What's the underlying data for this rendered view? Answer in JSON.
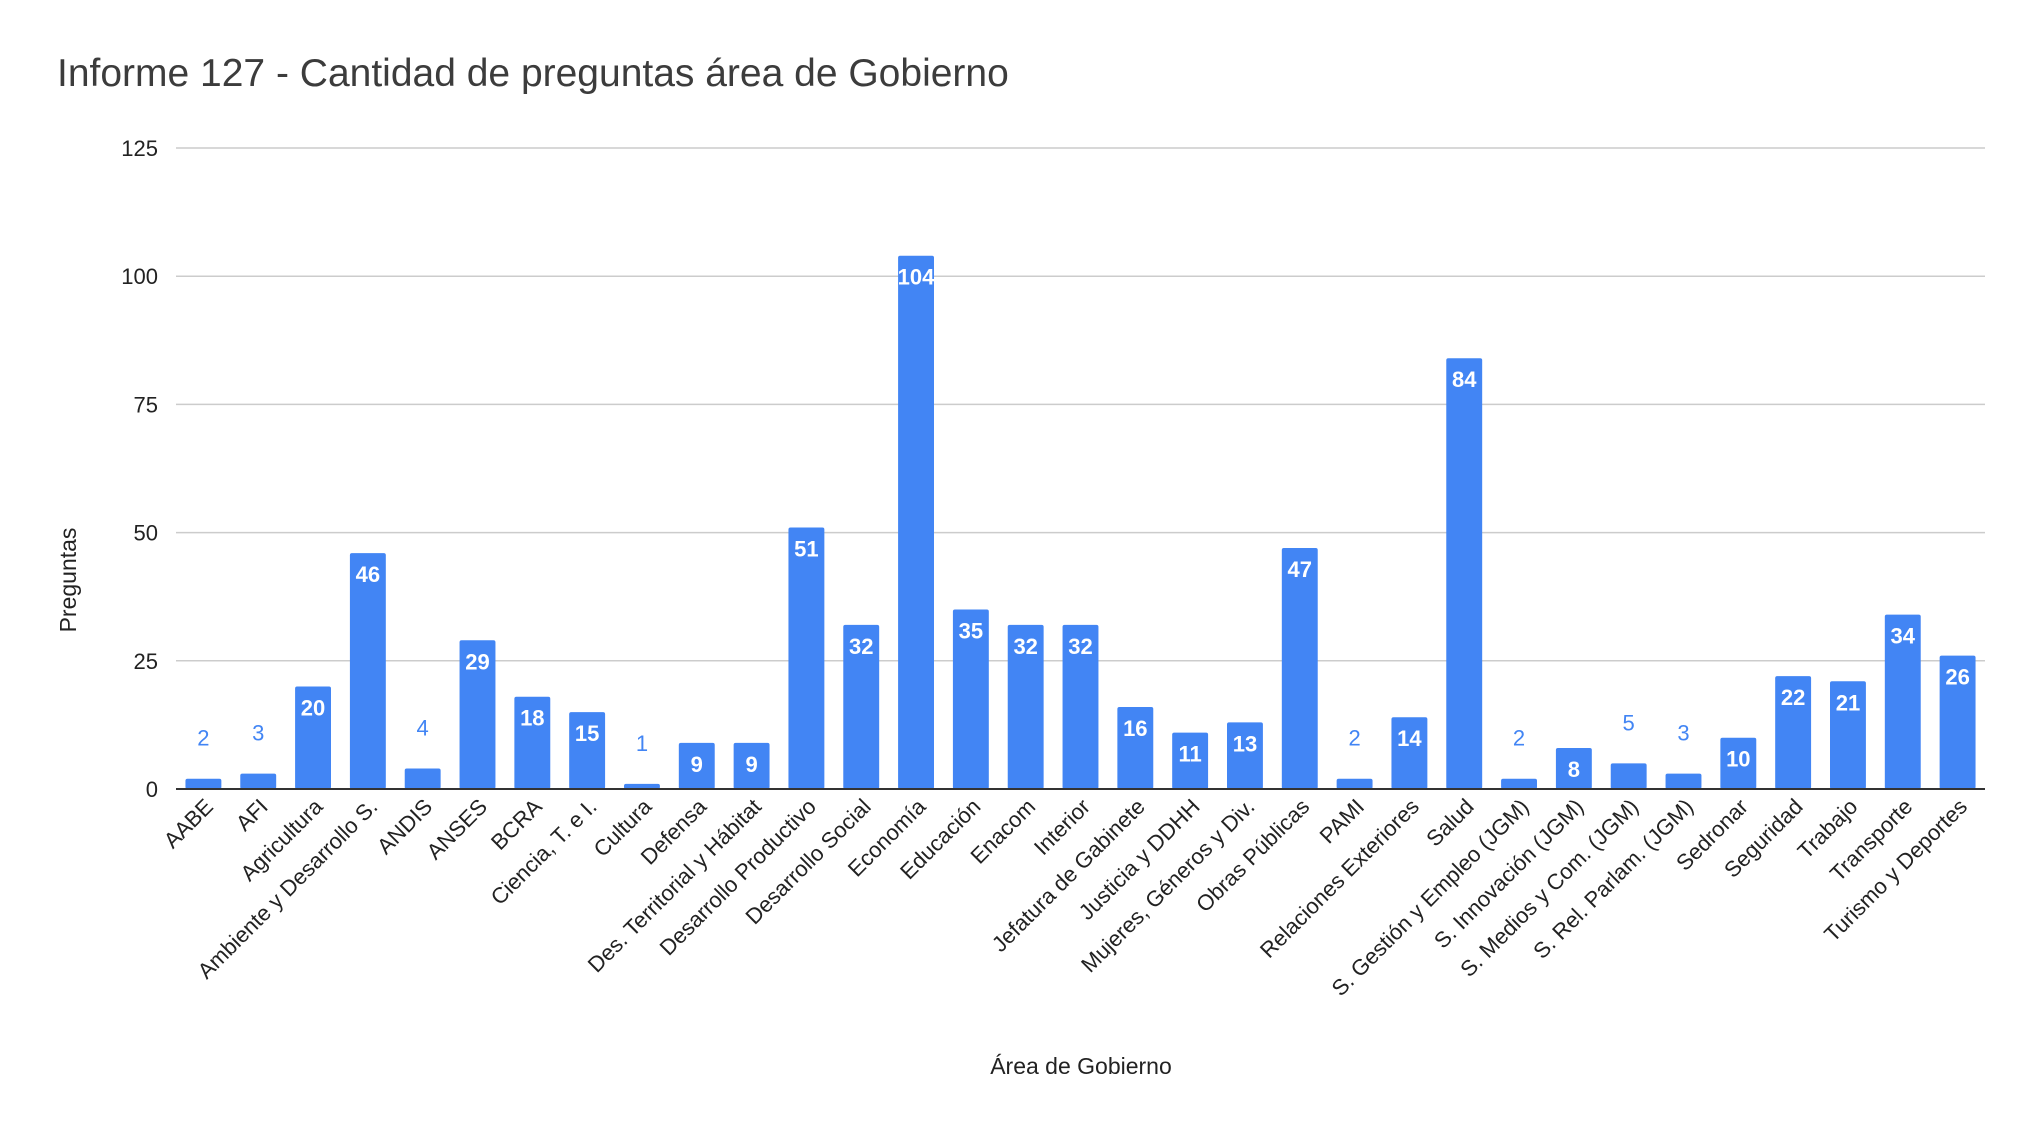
{
  "chart_data": {
    "type": "bar",
    "title": "Informe 127 - Cantidad de preguntas área de Gobierno",
    "xlabel": "Área de Gobierno",
    "ylabel": "Preguntas",
    "ylim": [
      0,
      125
    ],
    "yticks": [
      0,
      25,
      50,
      75,
      100,
      125
    ],
    "grid": true,
    "legend": "none",
    "bar_color": "#4285f4",
    "categories": [
      "AABE",
      "AFI",
      "Agricultura",
      "Ambiente y Desarrollo S.",
      "ANDIS",
      "ANSES",
      "BCRA",
      "Ciencia, T. e I.",
      "Cultura",
      "Defensa",
      "Des. Territorial y Hábitat",
      "Desarrollo Productivo",
      "Desarrollo Social",
      "Economía",
      "Educación",
      "Enacom",
      "Interior",
      "Jefatura de Gabinete",
      "Justicia y DDHH",
      "Mujeres, Géneros y Div.",
      "Obras Públicas",
      "PAMI",
      "Relaciones Exteriores",
      "Salud",
      "S. Gestión y Empleo (JGM)",
      "S. Innovación (JGM)",
      "S. Medios y Com. (JGM)",
      "S. Rel. Parlam. (JGM)",
      "Sedronar",
      "Seguridad",
      "Trabajo",
      "Transporte",
      "Turismo y Deportes"
    ],
    "values": [
      2,
      3,
      20,
      46,
      4,
      29,
      18,
      15,
      1,
      9,
      9,
      51,
      32,
      104,
      35,
      32,
      32,
      16,
      11,
      13,
      47,
      2,
      14,
      84,
      2,
      8,
      5,
      3,
      10,
      22,
      21,
      34,
      26
    ]
  }
}
